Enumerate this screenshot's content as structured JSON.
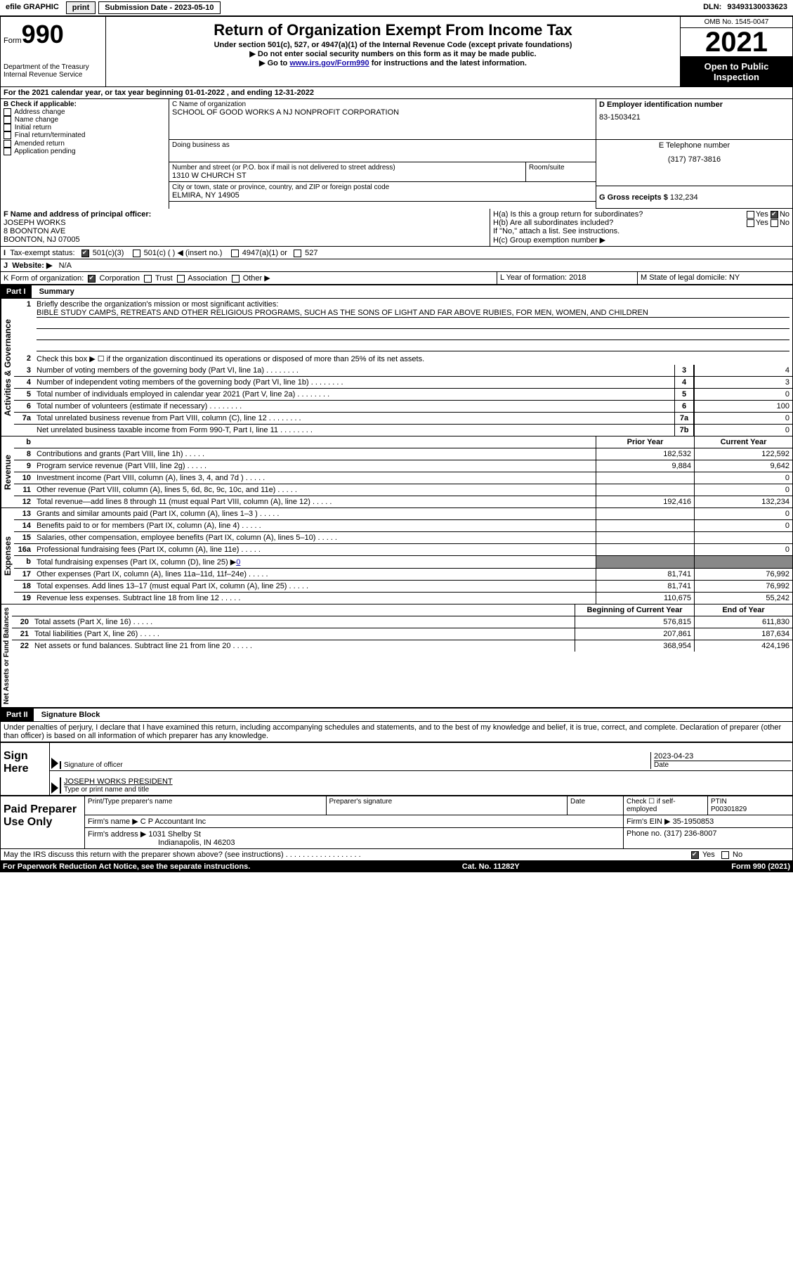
{
  "topbar": {
    "efile": "efile GRAPHIC",
    "print": "print",
    "submission": "Submission Date - 2023-05-10",
    "dln_label": "DLN:",
    "dln": "93493130033623"
  },
  "header": {
    "form_prefix": "Form",
    "form_number": "990",
    "department": "Department of the Treasury",
    "irs": "Internal Revenue Service",
    "title": "Return of Organization Exempt From Income Tax",
    "subtitle": "Under section 501(c), 527, or 4947(a)(1) of the Internal Revenue Code (except private foundations)",
    "note1": "▶ Do not enter social security numbers on this form as it may be made public.",
    "note2_pre": "▶ Go to ",
    "note2_link": "www.irs.gov/Form990",
    "note2_post": " for instructions and the latest information.",
    "omb": "OMB No. 1545-0047",
    "year": "2021",
    "open": "Open to Public Inspection"
  },
  "sectionA": {
    "a_text": "For the 2021 calendar year, or tax year beginning 01-01-2022    , and ending 12-31-2022",
    "b_label": "B Check if applicable:",
    "b_items": [
      "Address change",
      "Name change",
      "Initial return",
      "Final return/terminated",
      "Amended return",
      "Application pending"
    ],
    "c_label": "C Name of organization",
    "c_value": "SCHOOL OF GOOD WORKS A NJ NONPROFIT CORPORATION",
    "dba_label": "Doing business as",
    "addr_label": "Number and street (or P.O. box if mail is not delivered to street address)",
    "room_label": "Room/suite",
    "addr": "1310 W CHURCH ST",
    "city_label": "City or town, state or province, country, and ZIP or foreign postal code",
    "city": "ELMIRA, NY  14905",
    "d_label": "D Employer identification number",
    "d_value": "83-1503421",
    "e_label": "E Telephone number",
    "e_value": "(317) 787-3816",
    "g_label": "G Gross receipts $",
    "g_value": "132,234",
    "f_label": "F  Name and address of principal officer:",
    "f_name": "JOSEPH WORKS",
    "f_addr1": "8 BOONTON AVE",
    "f_addr2": "BOONTON, NJ  07005",
    "ha_label": "H(a)  Is this a group return for subordinates?",
    "hb_label": "H(b)  Are all subordinates included?",
    "hb_note": "If \"No,\" attach a list. See instructions.",
    "hc_label": "H(c)  Group exemption number ▶",
    "yes": "Yes",
    "no": "No"
  },
  "taxExempt": {
    "i_label": "Tax-exempt status:",
    "c3": "501(c)(3)",
    "c_other": "501(c) (   ) ◀ (insert no.)",
    "a1": "4947(a)(1) or",
    "s527": "527",
    "j_label": "Website: ▶",
    "j_value": "N/A",
    "k_label": "K Form of organization:",
    "k_corp": "Corporation",
    "k_trust": "Trust",
    "k_assoc": "Association",
    "k_other": "Other ▶",
    "l_label": "L Year of formation:",
    "l_value": "2018",
    "m_label": "M State of legal domicile:",
    "m_value": "NY"
  },
  "partI": {
    "title": "Part I",
    "subtitle": "Summary",
    "line1_label": "Briefly describe the organization's mission or most significant activities:",
    "line1_text": "BIBLE STUDY CAMPS, RETREATS AND OTHER RELIGIOUS PROGRAMS, SUCH AS THE SONS OF LIGHT AND FAR ABOVE RUBIES, FOR MEN, WOMEN, AND CHILDREN",
    "line2": "Check this box ▶ ☐ if the organization discontinued its operations or disposed of more than 25% of its net assets.",
    "lines": [
      {
        "n": "3",
        "t": "Number of voting members of the governing body (Part VI, line 1a)",
        "box": "3",
        "v": "4"
      },
      {
        "n": "4",
        "t": "Number of independent voting members of the governing body (Part VI, line 1b)",
        "box": "4",
        "v": "3"
      },
      {
        "n": "5",
        "t": "Total number of individuals employed in calendar year 2021 (Part V, line 2a)",
        "box": "5",
        "v": "0"
      },
      {
        "n": "6",
        "t": "Total number of volunteers (estimate if necessary)",
        "box": "6",
        "v": "100"
      },
      {
        "n": "7a",
        "t": "Total unrelated business revenue from Part VIII, column (C), line 12",
        "box": "7a",
        "v": "0"
      },
      {
        "n": "",
        "t": "Net unrelated business taxable income from Form 990-T, Part I, line 11",
        "box": "7b",
        "v": "0"
      }
    ],
    "prior_label": "Prior Year",
    "curr_label": "Current Year",
    "revenue": [
      {
        "n": "8",
        "t": "Contributions and grants (Part VIII, line 1h)",
        "p": "182,532",
        "c": "122,592"
      },
      {
        "n": "9",
        "t": "Program service revenue (Part VIII, line 2g)",
        "p": "9,884",
        "c": "9,642"
      },
      {
        "n": "10",
        "t": "Investment income (Part VIII, column (A), lines 3, 4, and 7d )",
        "p": "",
        "c": "0"
      },
      {
        "n": "11",
        "t": "Other revenue (Part VIII, column (A), lines 5, 6d, 8c, 9c, 10c, and 11e)",
        "p": "",
        "c": "0"
      },
      {
        "n": "12",
        "t": "Total revenue—add lines 8 through 11 (must equal Part VIII, column (A), line 12)",
        "p": "192,416",
        "c": "132,234"
      }
    ],
    "expenses": [
      {
        "n": "13",
        "t": "Grants and similar amounts paid (Part IX, column (A), lines 1–3 )",
        "p": "",
        "c": "0"
      },
      {
        "n": "14",
        "t": "Benefits paid to or for members (Part IX, column (A), line 4)",
        "p": "",
        "c": "0"
      },
      {
        "n": "15",
        "t": "Salaries, other compensation, employee benefits (Part IX, column (A), lines 5–10)",
        "p": "",
        "c": ""
      },
      {
        "n": "16a",
        "t": "Professional fundraising fees (Part IX, column (A), line 11e)",
        "p": "",
        "c": "0"
      }
    ],
    "line16b_pre": "Total fundraising expenses (Part IX, column (D), line 25) ▶",
    "line16b_val": "0",
    "expenses2": [
      {
        "n": "17",
        "t": "Other expenses (Part IX, column (A), lines 11a–11d, 11f–24e)",
        "p": "81,741",
        "c": "76,992"
      },
      {
        "n": "18",
        "t": "Total expenses. Add lines 13–17 (must equal Part IX, column (A), line 25)",
        "p": "81,741",
        "c": "76,992"
      },
      {
        "n": "19",
        "t": "Revenue less expenses. Subtract line 18 from line 12",
        "p": "110,675",
        "c": "55,242"
      }
    ],
    "begin_label": "Beginning of Current Year",
    "end_label": "End of Year",
    "netassets": [
      {
        "n": "20",
        "t": "Total assets (Part X, line 16)",
        "p": "576,815",
        "c": "611,830"
      },
      {
        "n": "21",
        "t": "Total liabilities (Part X, line 26)",
        "p": "207,861",
        "c": "187,634"
      },
      {
        "n": "22",
        "t": "Net assets or fund balances. Subtract line 21 from line 20",
        "p": "368,954",
        "c": "424,196"
      }
    ],
    "vert": {
      "gov": "Activities & Governance",
      "rev": "Revenue",
      "exp": "Expenses",
      "net": "Net Assets or Fund Balances"
    }
  },
  "partII": {
    "title": "Part II",
    "subtitle": "Signature Block",
    "declaration": "Under penalties of perjury, I declare that I have examined this return, including accompanying schedules and statements, and to the best of my knowledge and belief, it is true, correct, and complete. Declaration of preparer (other than officer) is based on all information of which preparer has any knowledge."
  },
  "sign": {
    "sign_here": "Sign Here",
    "sig_label": "Signature of officer",
    "date_label": "Date",
    "date_val": "2023-04-23",
    "officer_name": "JOSEPH WORKS PRESIDENT",
    "officer_label": "Type or print name and title"
  },
  "preparer": {
    "label": "Paid Preparer Use Only",
    "print_name": "Print/Type preparer's name",
    "sig": "Preparer's signature",
    "date": "Date",
    "check_label": "Check ☐ if self-employed",
    "ptin_label": "PTIN",
    "ptin": "P00301829",
    "firm_name_label": "Firm's name    ▶",
    "firm_name": "C P Accountant Inc",
    "firm_ein_label": "Firm's EIN ▶",
    "firm_ein": "35-1950853",
    "firm_addr_label": "Firm's address ▶",
    "firm_addr": "1031 Shelby St",
    "firm_city": "Indianapolis, IN  46203",
    "phone_label": "Phone no.",
    "phone": "(317) 236-8007"
  },
  "footer": {
    "discuss": "May the IRS discuss this return with the preparer shown above? (see instructions)",
    "paperwork": "For Paperwork Reduction Act Notice, see the separate instructions.",
    "cat": "Cat. No. 11282Y",
    "form": "Form 990 (2021)"
  }
}
